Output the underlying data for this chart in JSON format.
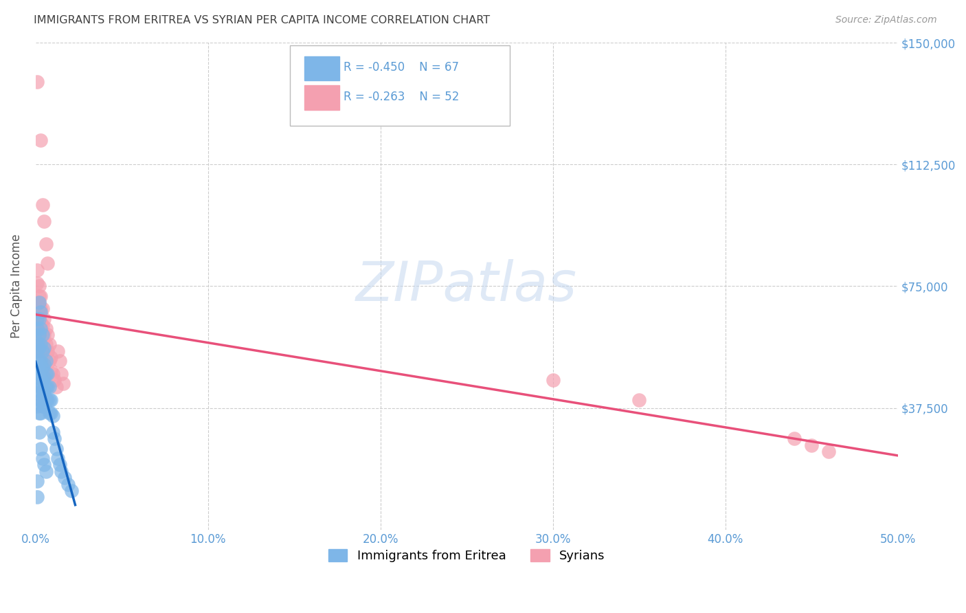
{
  "title": "IMMIGRANTS FROM ERITREA VS SYRIAN PER CAPITA INCOME CORRELATION CHART",
  "source": "Source: ZipAtlas.com",
  "ylabel": "Per Capita Income",
  "x_min": 0.0,
  "x_max": 0.5,
  "y_min": 0,
  "y_max": 150000,
  "legend_eritrea": "Immigrants from Eritrea",
  "legend_syrians": "Syrians",
  "legend_r_eritrea": "-0.450",
  "legend_n_eritrea": "67",
  "legend_r_syrians": "-0.263",
  "legend_n_syrians": "52",
  "color_eritrea": "#7EB6E8",
  "color_syrians": "#F4A0B0",
  "color_line_eritrea": "#1565C0",
  "color_line_syrians": "#E8507A",
  "color_axis_labels": "#5B9BD5",
  "color_title": "#404040",
  "eritrea_x": [
    0.001,
    0.001,
    0.001,
    0.001,
    0.001,
    0.001,
    0.001,
    0.001,
    0.001,
    0.001,
    0.002,
    0.002,
    0.002,
    0.002,
    0.002,
    0.002,
    0.002,
    0.002,
    0.002,
    0.003,
    0.003,
    0.003,
    0.003,
    0.003,
    0.003,
    0.003,
    0.003,
    0.004,
    0.004,
    0.004,
    0.004,
    0.004,
    0.004,
    0.005,
    0.005,
    0.005,
    0.005,
    0.005,
    0.006,
    0.006,
    0.006,
    0.006,
    0.007,
    0.007,
    0.007,
    0.008,
    0.008,
    0.008,
    0.009,
    0.009,
    0.01,
    0.01,
    0.011,
    0.012,
    0.013,
    0.014,
    0.015,
    0.017,
    0.019,
    0.021,
    0.001,
    0.001,
    0.002,
    0.003,
    0.004,
    0.005,
    0.006
  ],
  "eritrea_y": [
    65000,
    62000,
    58000,
    55000,
    52000,
    50000,
    48000,
    45000,
    42000,
    38000,
    70000,
    65000,
    60000,
    56000,
    52000,
    48000,
    44000,
    40000,
    36000,
    67000,
    62000,
    57000,
    52000,
    48000,
    44000,
    40000,
    36000,
    60000,
    55000,
    50000,
    46000,
    42000,
    38000,
    56000,
    51000,
    47000,
    43000,
    38000,
    52000,
    48000,
    44000,
    40000,
    48000,
    44000,
    40000,
    44000,
    40000,
    36000,
    40000,
    36000,
    35000,
    30000,
    28000,
    25000,
    22000,
    20000,
    18000,
    16000,
    14000,
    12000,
    15000,
    10000,
    30000,
    25000,
    22000,
    20000,
    18000
  ],
  "syrians_x": [
    0.001,
    0.001,
    0.001,
    0.001,
    0.001,
    0.002,
    0.002,
    0.002,
    0.002,
    0.002,
    0.003,
    0.003,
    0.003,
    0.003,
    0.003,
    0.004,
    0.004,
    0.004,
    0.004,
    0.005,
    0.005,
    0.005,
    0.005,
    0.006,
    0.006,
    0.006,
    0.007,
    0.007,
    0.007,
    0.008,
    0.008,
    0.009,
    0.009,
    0.01,
    0.011,
    0.012,
    0.013,
    0.014,
    0.015,
    0.016,
    0.001,
    0.001,
    0.002,
    0.002,
    0.003,
    0.004,
    0.005,
    0.3,
    0.35,
    0.44,
    0.45,
    0.46
  ],
  "syrians_y": [
    138000,
    70000,
    65000,
    60000,
    55000,
    75000,
    70000,
    65000,
    60000,
    55000,
    120000,
    72000,
    68000,
    63000,
    58000,
    100000,
    68000,
    63000,
    58000,
    95000,
    65000,
    60000,
    55000,
    88000,
    62000,
    57000,
    82000,
    60000,
    55000,
    57000,
    52000,
    53000,
    49000,
    48000,
    46000,
    44000,
    55000,
    52000,
    48000,
    45000,
    80000,
    76000,
    72000,
    68000,
    64000,
    60000,
    56000,
    46000,
    40000,
    28000,
    26000,
    24000
  ]
}
